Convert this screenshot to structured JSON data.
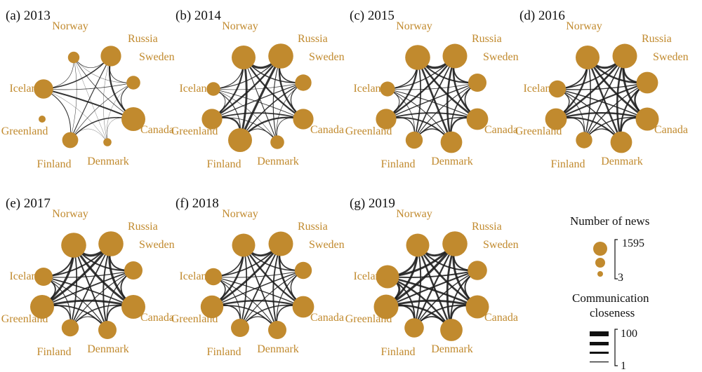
{
  "colors": {
    "node": "#C18A2E",
    "label": "#C18A2E",
    "edge": "#1e1e1e",
    "text": "#111111"
  },
  "panels": [
    {
      "title": "(a) 2013",
      "sizes": {
        "Norway": 0.2,
        "Russia": 0.6,
        "Sweden": 0.3,
        "Canada": 0.75,
        "Denmark": 0.05,
        "Finland": 0.4,
        "Greenland": 0.0,
        "Iceland": 0.55
      }
    },
    {
      "title": "(b) 2014",
      "sizes": {
        "Norway": 0.75,
        "Russia": 0.8,
        "Sweden": 0.42,
        "Canada": 0.6,
        "Denmark": 0.3,
        "Finland": 0.75,
        "Greenland": 0.6,
        "Iceland": 0.3
      }
    },
    {
      "title": "(c) 2015",
      "sizes": {
        "Norway": 0.8,
        "Russia": 0.78,
        "Sweden": 0.5,
        "Canada": 0.65,
        "Denmark": 0.65,
        "Finland": 0.45,
        "Greenland": 0.6,
        "Iceland": 0.35
      }
    },
    {
      "title": "(d) 2016",
      "sizes": {
        "Norway": 0.75,
        "Russia": 0.78,
        "Sweden": 0.65,
        "Canada": 0.72,
        "Denmark": 0.65,
        "Finland": 0.42,
        "Greenland": 0.65,
        "Iceland": 0.45
      }
    },
    {
      "title": "(e) 2017",
      "sizes": {
        "Norway": 0.8,
        "Russia": 0.8,
        "Sweden": 0.5,
        "Canada": 0.75,
        "Denmark": 0.5,
        "Finland": 0.45,
        "Greenland": 0.75,
        "Iceland": 0.5
      }
    },
    {
      "title": "(f) 2018",
      "sizes": {
        "Norway": 0.72,
        "Russia": 0.78,
        "Sweden": 0.45,
        "Canada": 0.65,
        "Denmark": 0.5,
        "Finland": 0.5,
        "Greenland": 0.7,
        "Iceland": 0.45
      }
    },
    {
      "title": "(g) 2019",
      "sizes": {
        "Norway": 0.72,
        "Russia": 0.8,
        "Sweden": 0.55,
        "Canada": 0.72,
        "Denmark": 0.68,
        "Finland": 0.55,
        "Greenland": 0.78,
        "Iceland": 0.72
      }
    }
  ],
  "node_labels": {
    "Norway": "Norway",
    "Russia": "Russia",
    "Sweden": "Sweden",
    "Canada": "Canada",
    "Denmark": "Denmark",
    "Finland": "Finland",
    "Greenland": "Greenland",
    "Iceland": "Iceland"
  },
  "legend": {
    "news_title": "Number of news",
    "news_max": "1595",
    "news_min": "3",
    "closeness_title_1": "Communication",
    "closeness_title_2": "closeness",
    "closeness_max": "100",
    "closeness_min": "1"
  }
}
